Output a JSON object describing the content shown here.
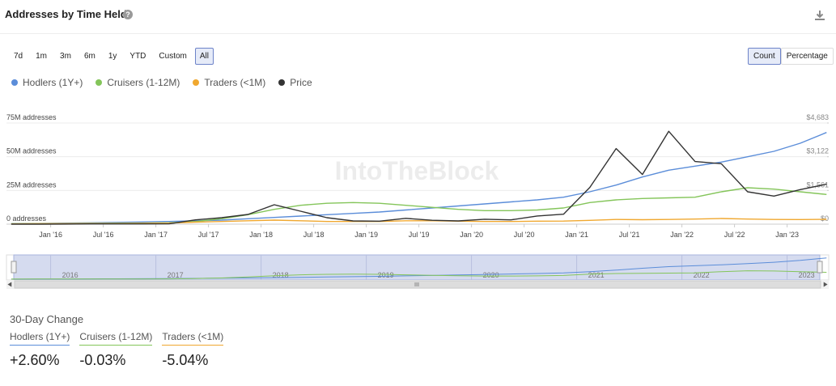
{
  "header": {
    "title": "Addresses by Time Held"
  },
  "range_buttons": [
    {
      "label": "7d"
    },
    {
      "label": "1m"
    },
    {
      "label": "3m"
    },
    {
      "label": "6m"
    },
    {
      "label": "1y"
    },
    {
      "label": "YTD"
    },
    {
      "label": "Custom"
    },
    {
      "label": "All",
      "active": true
    }
  ],
  "mode_buttons": [
    {
      "label": "Count",
      "active": true
    },
    {
      "label": "Percentage"
    }
  ],
  "chart_data": {
    "type": "line",
    "watermark": "IntoTheBlock",
    "x": [
      2015.625,
      2015.875,
      2016.125,
      2016.375,
      2016.625,
      2016.875,
      2017.125,
      2017.375,
      2017.625,
      2017.875,
      2018.125,
      2018.375,
      2018.625,
      2018.875,
      2019.125,
      2019.375,
      2019.625,
      2019.875,
      2020.125,
      2020.375,
      2020.625,
      2020.875,
      2021.125,
      2021.375,
      2021.625,
      2021.875,
      2022.125,
      2022.375,
      2022.625,
      2022.875,
      2023.125,
      2023.375
    ],
    "xlim": [
      2015.58,
      2023.38
    ],
    "xticks": [
      {
        "value": 2016,
        "label": "Jan '16"
      },
      {
        "value": 2016.5,
        "label": "Jul '16"
      },
      {
        "value": 2017,
        "label": "Jan '17"
      },
      {
        "value": 2017.5,
        "label": "Jul '17"
      },
      {
        "value": 2018,
        "label": "Jan '18"
      },
      {
        "value": 2018.5,
        "label": "Jul '18"
      },
      {
        "value": 2019,
        "label": "Jan '19"
      },
      {
        "value": 2019.5,
        "label": "Jul '19"
      },
      {
        "value": 2020,
        "label": "Jan '20"
      },
      {
        "value": 2020.5,
        "label": "Jul '20"
      },
      {
        "value": 2021,
        "label": "Jan '21"
      },
      {
        "value": 2021.5,
        "label": "Jul '21"
      },
      {
        "value": 2022,
        "label": "Jan '22"
      },
      {
        "value": 2022.5,
        "label": "Jul '22"
      },
      {
        "value": 2023,
        "label": "Jan '23"
      }
    ],
    "ylim": [
      0,
      75000000
    ],
    "yticks": [
      {
        "value": 0,
        "label": "0 addresses"
      },
      {
        "value": 25000000,
        "label": "25M addresses"
      },
      {
        "value": 50000000,
        "label": "50M addresses"
      },
      {
        "value": 75000000,
        "label": "75M addresses"
      }
    ],
    "y2lim": [
      0,
      4683
    ],
    "y2ticks": [
      {
        "value": 0,
        "label": "$0"
      },
      {
        "value": 1561,
        "label": "$1,561"
      },
      {
        "value": 3122,
        "label": "$3,122"
      },
      {
        "value": 4683,
        "label": "$4,683"
      }
    ],
    "grid": true,
    "series": [
      {
        "name": "Hodlers (1Y+)",
        "color": "#5b8dd9",
        "values": [
          300000,
          500000,
          800000,
          1000000,
          1300000,
          1600000,
          2000000,
          2500000,
          3000000,
          4000000,
          5000000,
          6000000,
          7000000,
          8000000,
          9000000,
          10500000,
          12000000,
          13500000,
          15000000,
          16500000,
          18000000,
          20000000,
          24000000,
          29000000,
          35000000,
          40000000,
          43000000,
          46000000,
          50000000,
          54000000,
          60000000,
          68000000
        ]
      },
      {
        "name": "Cruisers (1-12M)",
        "color": "#84c55a",
        "values": [
          300000,
          400000,
          500000,
          600000,
          700000,
          800000,
          1000000,
          2000000,
          4000000,
          7000000,
          11000000,
          14000000,
          15500000,
          16000000,
          15500000,
          14000000,
          12500000,
          11000000,
          10000000,
          10000000,
          10500000,
          12000000,
          16000000,
          18000000,
          19000000,
          19500000,
          20000000,
          24000000,
          27000000,
          26000000,
          24000000,
          22000000
        ]
      },
      {
        "name": "Traders (<1M)",
        "color": "#f0a830",
        "values": [
          200000,
          300000,
          400000,
          500000,
          500000,
          600000,
          800000,
          1500000,
          2000000,
          2500000,
          3000000,
          2500000,
          2000000,
          2000000,
          2000000,
          2500000,
          2500000,
          2200000,
          2000000,
          2000000,
          2200000,
          2300000,
          2800000,
          3500000,
          3300000,
          3500000,
          3800000,
          4200000,
          3800000,
          3500000,
          3400000,
          3600000
        ]
      },
      {
        "name": "Price",
        "color": "#333333",
        "axis": "y2",
        "values": [
          1,
          1,
          5,
          12,
          11,
          10,
          15,
          200,
          300,
          450,
          900,
          600,
          300,
          150,
          140,
          270,
          180,
          150,
          230,
          200,
          380,
          460,
          1700,
          3500,
          2300,
          4300,
          2900,
          2800,
          1500,
          1300,
          1600,
          1850
        ]
      }
    ]
  },
  "navigator": {
    "xticks": [
      2016,
      2017,
      2018,
      2019,
      2020,
      2021,
      2022,
      2023
    ]
  },
  "change": {
    "title": "30-Day Change",
    "items": [
      {
        "label": "Hodlers (1Y+)",
        "value": "+2.60%"
      },
      {
        "label": "Cruisers (1-12M)",
        "value": "-0.03%"
      },
      {
        "label": "Traders (<1M)",
        "value": "-5.04%"
      }
    ]
  }
}
